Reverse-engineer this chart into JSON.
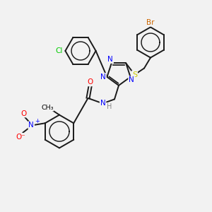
{
  "bg_color": "#f2f2f2",
  "atom_colors": {
    "C": "#000000",
    "N": "#0000ff",
    "O": "#ff0000",
    "S": "#cccc00",
    "Cl": "#00cc00",
    "Br": "#cc6600",
    "H": "#888888"
  },
  "bond_color": "#1a1a1a",
  "bond_width": 1.4
}
